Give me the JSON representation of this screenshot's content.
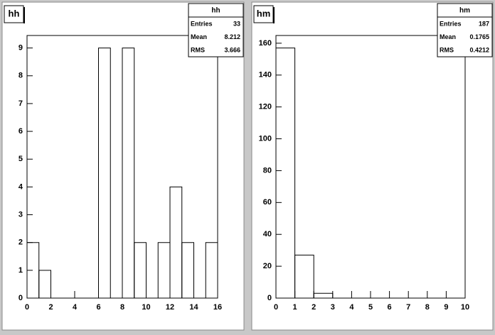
{
  "chart_data": [
    {
      "type": "histogram",
      "title": "hh",
      "bins": [
        0,
        1,
        2,
        3,
        4,
        5,
        6,
        7,
        8,
        9,
        10,
        11,
        12,
        13,
        14,
        15,
        16
      ],
      "values": [
        2,
        1,
        0,
        0,
        0,
        0,
        9,
        0,
        9,
        2,
        0,
        2,
        4,
        2,
        0,
        2
      ],
      "color": "#000000",
      "xlim": [
        0,
        16
      ],
      "xticks": [
        0,
        2,
        4,
        6,
        8,
        10,
        12,
        14,
        16
      ],
      "ylim": [
        0,
        9.45
      ],
      "yticks": [
        0,
        1,
        2,
        3,
        4,
        5,
        6,
        7,
        8,
        9
      ],
      "stats": {
        "name": "hh",
        "rows": [
          {
            "label": "Entries",
            "value": 33
          },
          {
            "label": "Mean",
            "value": 8.212
          },
          {
            "label": "RMS",
            "value": 3.666
          }
        ]
      }
    },
    {
      "type": "histogram",
      "title": "hm",
      "bins": [
        0,
        1,
        2,
        3,
        4,
        5,
        6,
        7,
        8,
        9,
        10
      ],
      "values": [
        157,
        27,
        3,
        0,
        0,
        0,
        0,
        0,
        0,
        0
      ],
      "color": "#000000",
      "xlim": [
        0,
        10
      ],
      "xticks": [
        0,
        1,
        2,
        3,
        4,
        5,
        6,
        7,
        8,
        9,
        10
      ],
      "ylim": [
        0,
        164.85
      ],
      "yticks": [
        0,
        20,
        40,
        60,
        80,
        100,
        120,
        140,
        160
      ],
      "stats": {
        "name": "hm",
        "rows": [
          {
            "label": "Entries",
            "value": 187
          },
          {
            "label": "Mean",
            "value": 0.1765
          },
          {
            "label": "RMS",
            "value": 0.4212
          }
        ]
      }
    }
  ]
}
